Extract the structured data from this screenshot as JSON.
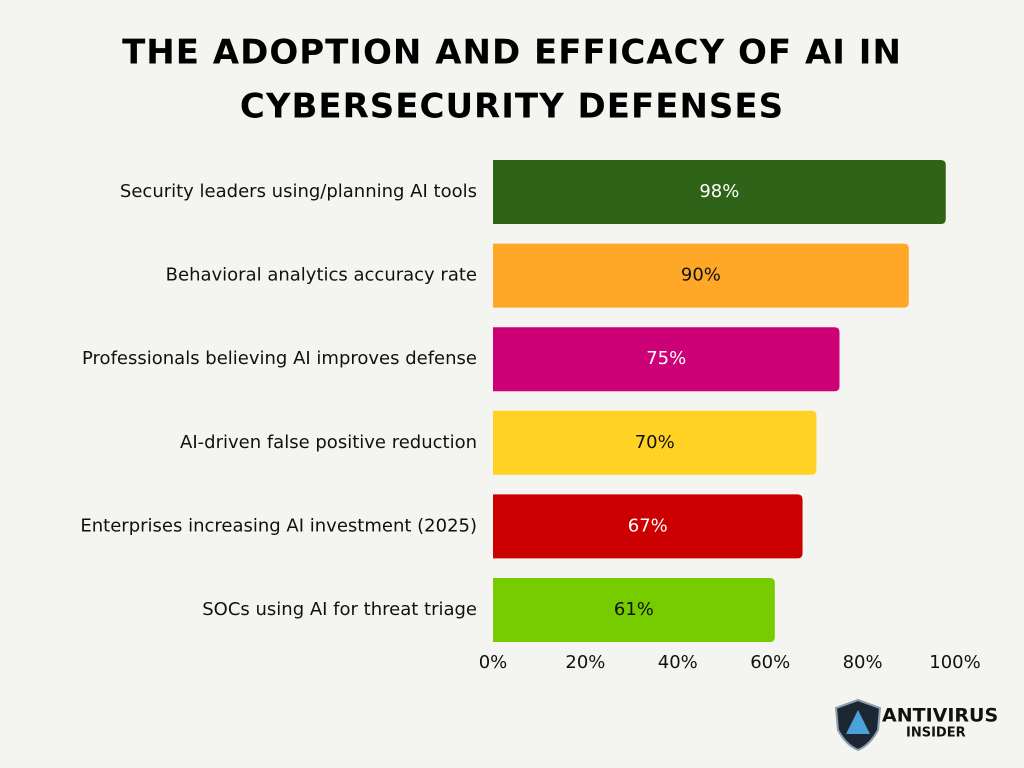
{
  "chart_data": {
    "type": "barh",
    "title": [
      "The Adoption and Efficacy of AI in",
      "Cybersecurity Defenses"
    ],
    "categories": [
      "Security leaders using/planning AI tools",
      "Behavioral analytics accuracy rate",
      "Professionals believing AI improves defense",
      "AI-driven false positive reduction",
      "Enterprises increasing AI investment (2025)",
      "SOCs using AI for threat triage"
    ],
    "values": [
      98,
      90,
      75,
      70,
      67,
      61
    ],
    "value_labels": [
      "98%",
      "90%",
      "75%",
      "70%",
      "67%",
      "61%"
    ],
    "colors": [
      "#2f6318",
      "#ffa828",
      "#cc0077",
      "#ffd224",
      "#cc0000",
      "#77cc00"
    ],
    "label_colors": [
      "#ffffff",
      "#111111",
      "#ffffff",
      "#111111",
      "#ffffff",
      "#111111"
    ],
    "xlim": [
      0,
      100
    ],
    "xticks": [
      {
        "value": 0,
        "label": "0%"
      },
      {
        "value": 20,
        "label": "20%"
      },
      {
        "value": 40,
        "label": "40%"
      },
      {
        "value": 60,
        "label": "60%"
      },
      {
        "value": 80,
        "label": "80%"
      },
      {
        "value": 100,
        "label": "100%"
      }
    ],
    "grid": false
  },
  "logo": [
    "ANTIVIRUS",
    "INSIDER"
  ]
}
